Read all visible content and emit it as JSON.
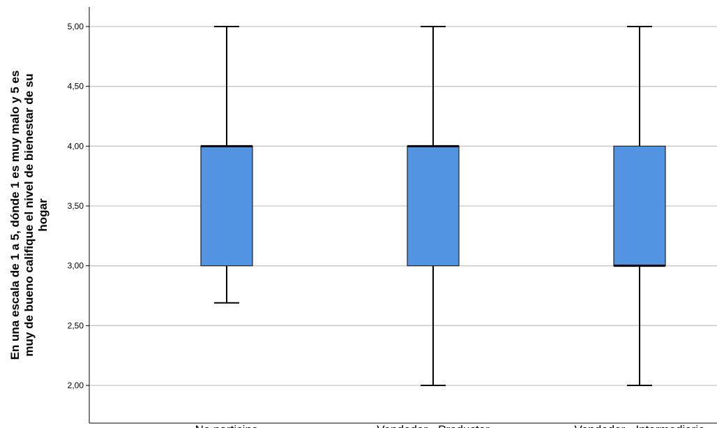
{
  "chart_data": {
    "type": "boxplot",
    "ylabel_lines": [
      "En una escala de 1 a 5, dónde 1 es muy malo y 5 es",
      "muy de bueno califique el nivel de bienestar de su",
      "hogar"
    ],
    "xlabel": "",
    "ylim": [
      1.9,
      5.17
    ],
    "yticks": [
      {
        "value": 2.0,
        "label": "2,00"
      },
      {
        "value": 2.5,
        "label": "2,50"
      },
      {
        "value": 3.0,
        "label": "3,00"
      },
      {
        "value": 3.5,
        "label": "3,50"
      },
      {
        "value": 4.0,
        "label": "4,00"
      },
      {
        "value": 4.5,
        "label": "4,50"
      },
      {
        "value": 5.0,
        "label": "5,00"
      }
    ],
    "grid": true,
    "box_color": "#5294e2",
    "categories": [
      "No participa",
      "Vendedor - Productor",
      "Vendedor - Intermediario"
    ],
    "boxes": [
      {
        "whisker_low": 2.69,
        "q1": 3.0,
        "median": 4.0,
        "q3": 4.0,
        "whisker_high": 5.0
      },
      {
        "whisker_low": 2.0,
        "q1": 3.0,
        "median": 4.0,
        "q3": 4.0,
        "whisker_high": 5.0
      },
      {
        "whisker_low": 2.0,
        "q1": 3.0,
        "median": 3.0,
        "q3": 4.0,
        "whisker_high": 5.0
      }
    ]
  }
}
